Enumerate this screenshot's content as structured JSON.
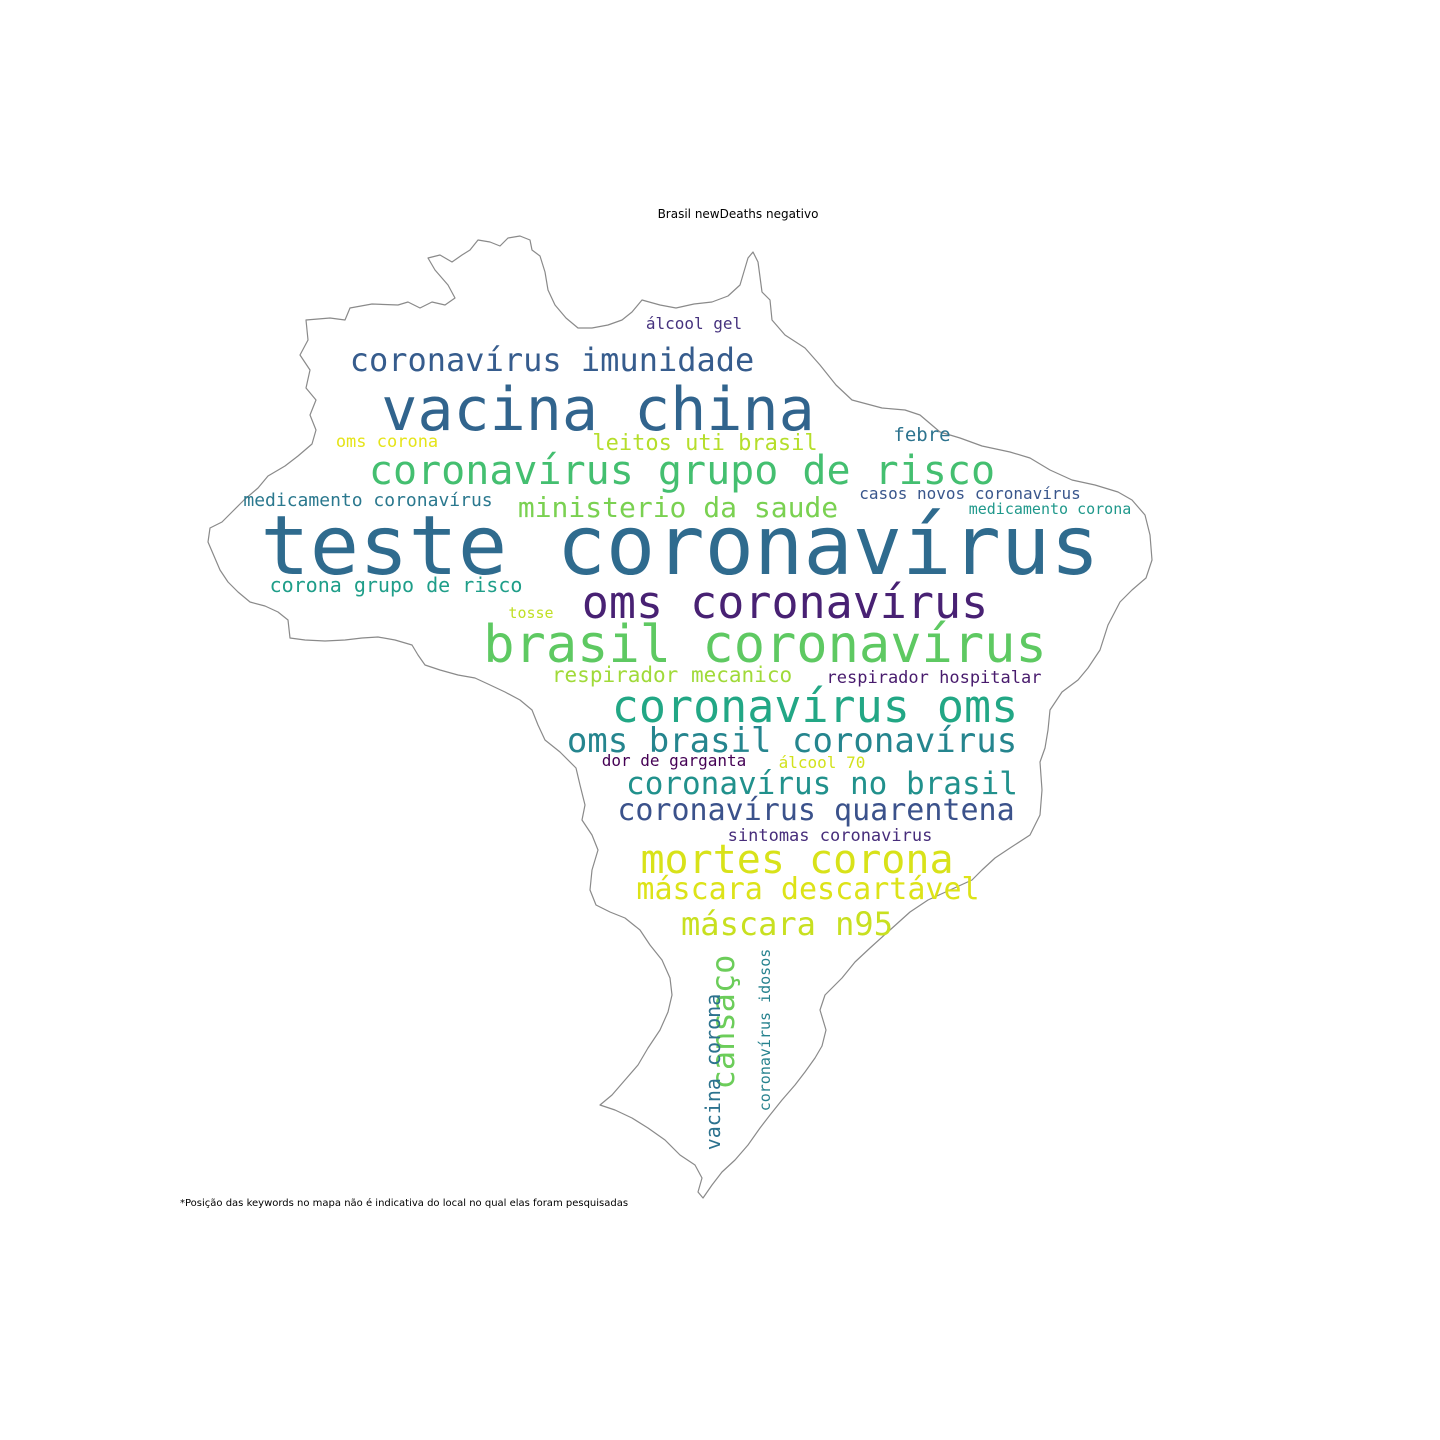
{
  "title": "Brasil newDeaths negativo",
  "footnote": "*Posição das keywords no mapa não é indicativa do local no qual elas foram pesquisadas",
  "words": [
    {
      "text": "teste coronavírus",
      "color": "#2f6b8e"
    },
    {
      "text": "vacina china",
      "color": "#31648d"
    },
    {
      "text": "brasil coronavírus",
      "color": "#5ec962"
    },
    {
      "text": "oms coronavírus",
      "color": "#482173"
    },
    {
      "text": "coronavírus grupo de risco",
      "color": "#44bf70"
    },
    {
      "text": "coronavírus oms",
      "color": "#22a785"
    },
    {
      "text": "mortes corona",
      "color": "#d8e219"
    },
    {
      "text": "oms brasil coronavírus",
      "color": "#25858e"
    },
    {
      "text": "coronavírus imunidade",
      "color": "#365c8d"
    },
    {
      "text": "coronavírus no brasil",
      "color": "#21918c"
    },
    {
      "text": "coronavírus quarentena",
      "color": "#3b528b"
    },
    {
      "text": "máscara descartável",
      "color": "#dde318"
    },
    {
      "text": "máscara n95",
      "color": "#c8e020"
    },
    {
      "text": "ministerio da saude",
      "color": "#7ad151"
    },
    {
      "text": "cansaço",
      "color": "#6ccd5a"
    },
    {
      "text": "respirador mecanico",
      "color": "#a0da39"
    },
    {
      "text": "corona grupo de risco",
      "color": "#1f9e89"
    },
    {
      "text": "leitos uti brasil",
      "color": "#b5de2b"
    },
    {
      "text": "medicamento coronavírus",
      "color": "#2a788e"
    },
    {
      "text": "vacina corona",
      "color": "#2c728e"
    },
    {
      "text": "febre",
      "color": "#2c738e"
    },
    {
      "text": "respirador hospitalar",
      "color": "#481b6d"
    },
    {
      "text": "casos novos coronavírus",
      "color": "#39568c"
    },
    {
      "text": "sintomas coronavirus",
      "color": "#472d7b"
    },
    {
      "text": "álcool gel",
      "color": "#46327e"
    },
    {
      "text": "oms corona",
      "color": "#e5e419"
    },
    {
      "text": "coronavírus idosos",
      "color": "#26828e"
    },
    {
      "text": "dor de garganta",
      "color": "#440154"
    },
    {
      "text": "álcool 70",
      "color": "#d2e21b"
    },
    {
      "text": "medicamento corona",
      "color": "#1f988b"
    },
    {
      "text": "tosse",
      "color": "#c0df25"
    }
  ]
}
